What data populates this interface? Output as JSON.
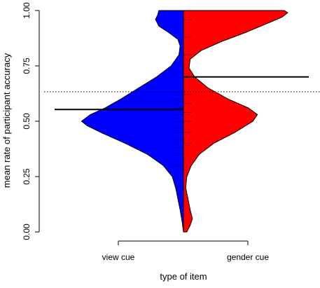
{
  "chart_data": {
    "type": "bean",
    "title": "",
    "xlabel": "type of item",
    "ylabel": "mean rate of participant accuracy",
    "ylim": [
      0,
      1
    ],
    "y_ticks": [
      0,
      0.25,
      0.5,
      0.75,
      1
    ],
    "y_tick_labels": [
      "0.00",
      "0.25",
      "0.50",
      "0.75",
      "1.00"
    ],
    "categories": [
      "view cue",
      "gender cue"
    ],
    "overall_mean": 0.633,
    "series": [
      {
        "category": "view cue",
        "color": "#0000ff",
        "mean": 0.553,
        "density": [
          [
            0.0,
            0.0
          ],
          [
            0.04,
            0.01
          ],
          [
            0.1,
            0.03
          ],
          [
            0.15,
            0.05
          ],
          [
            0.2,
            0.07
          ],
          [
            0.25,
            0.1
          ],
          [
            0.3,
            0.18
          ],
          [
            0.35,
            0.32
          ],
          [
            0.4,
            0.52
          ],
          [
            0.45,
            0.74
          ],
          [
            0.48,
            0.86
          ],
          [
            0.5,
            0.91
          ],
          [
            0.53,
            0.83
          ],
          [
            0.56,
            0.7
          ],
          [
            0.6,
            0.56
          ],
          [
            0.65,
            0.4
          ],
          [
            0.7,
            0.24
          ],
          [
            0.75,
            0.11
          ],
          [
            0.8,
            0.04
          ],
          [
            0.84,
            0.03
          ],
          [
            0.87,
            0.05
          ],
          [
            0.9,
            0.13
          ],
          [
            0.93,
            0.22
          ],
          [
            0.96,
            0.25
          ],
          [
            0.98,
            0.23
          ],
          [
            1.0,
            0.22
          ]
        ],
        "points": [
          0.3,
          0.35,
          0.38,
          0.42,
          0.45,
          0.47,
          0.5,
          0.53,
          0.56,
          0.6
        ]
      },
      {
        "category": "gender cue",
        "color": "#ff0000",
        "mean": 0.7,
        "density": [
          [
            0.0,
            0.03
          ],
          [
            0.03,
            0.06
          ],
          [
            0.06,
            0.08
          ],
          [
            0.1,
            0.06
          ],
          [
            0.15,
            0.04
          ],
          [
            0.2,
            0.02
          ],
          [
            0.25,
            0.03
          ],
          [
            0.3,
            0.07
          ],
          [
            0.35,
            0.14
          ],
          [
            0.4,
            0.27
          ],
          [
            0.45,
            0.46
          ],
          [
            0.5,
            0.62
          ],
          [
            0.53,
            0.66
          ],
          [
            0.56,
            0.58
          ],
          [
            0.6,
            0.4
          ],
          [
            0.65,
            0.22
          ],
          [
            0.7,
            0.1
          ],
          [
            0.74,
            0.05
          ],
          [
            0.78,
            0.06
          ],
          [
            0.82,
            0.16
          ],
          [
            0.86,
            0.34
          ],
          [
            0.9,
            0.55
          ],
          [
            0.94,
            0.74
          ],
          [
            0.97,
            0.88
          ],
          [
            0.99,
            0.93
          ],
          [
            1.0,
            0.9
          ]
        ],
        "points": [
          0.4,
          0.45,
          0.5,
          0.54,
          0.58,
          0.62,
          0.7,
          0.8,
          0.88,
          0.96
        ]
      }
    ]
  }
}
